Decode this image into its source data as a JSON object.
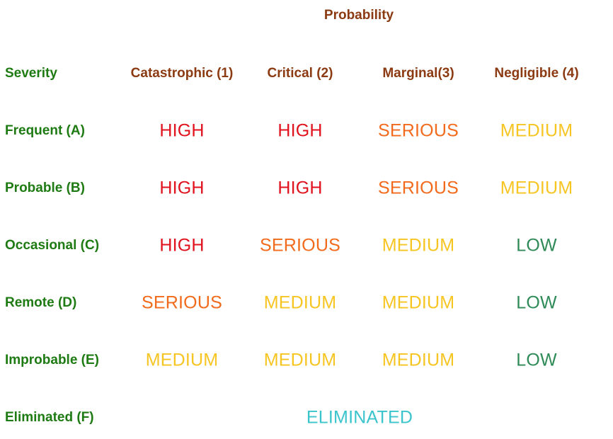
{
  "header": {
    "axis_title": "Probability"
  },
  "head_row": {
    "label": "Severity",
    "columns": [
      "Catastrophic (1)",
      "Critical (2)",
      "Marginal(3)",
      "Negligible (4)"
    ]
  },
  "rows": [
    {
      "label": "Frequent (A)",
      "cells": [
        "HIGH",
        "HIGH",
        "SERIOUS",
        "MEDIUM"
      ]
    },
    {
      "label": "Probable (B)",
      "cells": [
        "HIGH",
        "HIGH",
        "SERIOUS",
        "MEDIUM"
      ]
    },
    {
      "label": "Occasional (C)",
      "cells": [
        "HIGH",
        "SERIOUS",
        "MEDIUM",
        "LOW"
      ]
    },
    {
      "label": "Remote (D)",
      "cells": [
        "SERIOUS",
        "MEDIUM",
        "MEDIUM",
        "LOW"
      ]
    },
    {
      "label": "Improbable (E)",
      "cells": [
        "MEDIUM",
        "MEDIUM",
        "MEDIUM",
        "LOW"
      ]
    }
  ],
  "eliminated_row": {
    "label": "Eliminated (F)",
    "value": "ELIMINATED"
  },
  "colors": {
    "header_brown": "#8b3a12",
    "row_label_green": "#1e7a12",
    "HIGH": "#e0121e",
    "SERIOUS": "#f26a1b",
    "MEDIUM": "#f7c522",
    "LOW": "#2e8b57",
    "ELIMINATED": "#3cc4cc"
  }
}
